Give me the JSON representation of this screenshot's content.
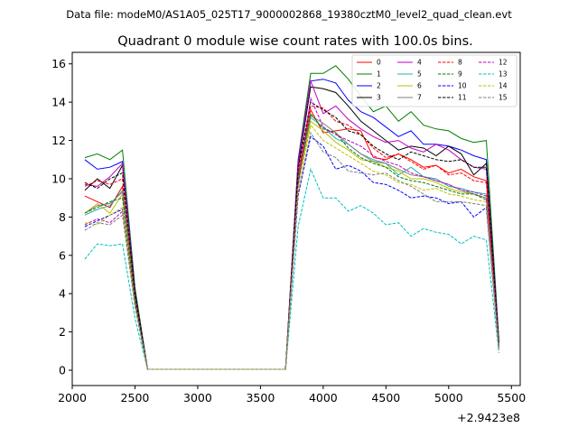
{
  "header": {
    "file_label": "Data file: modeM0/AS1A05_025T17_9000002868_19380cztM0_level2_quad_clean.evt"
  },
  "chart_data": {
    "type": "line",
    "title": "Quadrant 0 module wise count rates with 100.0s bins.",
    "xlabel": "",
    "ylabel": "",
    "x_offset_label": "+2.9423e8",
    "xlim": [
      2000,
      5570
    ],
    "ylim": [
      -0.8,
      16.6
    ],
    "xticks": [
      2000,
      2500,
      3000,
      3500,
      4000,
      4500,
      5000,
      5500
    ],
    "yticks": [
      0,
      2,
      4,
      6,
      8,
      10,
      12,
      14,
      16
    ],
    "grid": false,
    "legend": {
      "placement": "top-right",
      "columns": 4
    },
    "x": [
      2100,
      2200,
      2300,
      2400,
      2500,
      2600,
      2700,
      2800,
      2900,
      3000,
      3100,
      3200,
      3300,
      3400,
      3500,
      3600,
      3700,
      3800,
      3900,
      4000,
      4100,
      4200,
      4300,
      4400,
      4500,
      4600,
      4700,
      4800,
      4900,
      5000,
      5100,
      5200,
      5300,
      5400
    ],
    "series": [
      {
        "name": "0",
        "color": "#ff0000",
        "dash": "solid",
        "values": [
          9.1,
          8.8,
          8.5,
          9.6,
          3.8,
          0.05,
          0.05,
          0.05,
          0.05,
          0.05,
          0.05,
          0.05,
          0.05,
          0.05,
          0.05,
          0.05,
          0.05,
          10.2,
          13.6,
          12.4,
          12.5,
          12.6,
          12.5,
          11.1,
          11.0,
          11.3,
          11.0,
          10.6,
          10.7,
          10.3,
          10.5,
          10.1,
          9.9,
          1.3
        ]
      },
      {
        "name": "1",
        "color": "#008000",
        "dash": "solid",
        "values": [
          11.1,
          11.3,
          11.0,
          11.5,
          4.3,
          0.05,
          0.05,
          0.05,
          0.05,
          0.05,
          0.05,
          0.05,
          0.05,
          0.05,
          0.05,
          0.05,
          0.05,
          11.0,
          15.5,
          15.5,
          15.9,
          15.2,
          14.3,
          13.5,
          13.8,
          13.0,
          13.5,
          12.8,
          12.6,
          12.5,
          12.1,
          11.9,
          12.0,
          1.6
        ]
      },
      {
        "name": "2",
        "color": "#0000ff",
        "dash": "solid",
        "values": [
          11.0,
          10.5,
          10.6,
          10.9,
          4.1,
          0.05,
          0.05,
          0.05,
          0.05,
          0.05,
          0.05,
          0.05,
          0.05,
          0.05,
          0.05,
          0.05,
          0.05,
          10.9,
          15.1,
          15.2,
          15.0,
          14.1,
          13.5,
          13.2,
          12.7,
          12.2,
          12.5,
          11.8,
          11.8,
          11.7,
          11.5,
          11.2,
          11.0,
          1.5
        ]
      },
      {
        "name": "3",
        "color": "#000000",
        "dash": "solid",
        "values": [
          9.4,
          10.0,
          9.5,
          10.7,
          4.0,
          0.05,
          0.05,
          0.05,
          0.05,
          0.05,
          0.05,
          0.05,
          0.05,
          0.05,
          0.05,
          0.05,
          0.05,
          10.6,
          14.8,
          14.7,
          14.5,
          13.8,
          13.0,
          12.5,
          12.0,
          11.5,
          11.7,
          11.6,
          11.2,
          11.7,
          11.3,
          10.2,
          10.8,
          1.4
        ]
      },
      {
        "name": "4",
        "color": "#bf00bf",
        "dash": "solid",
        "values": [
          9.7,
          9.6,
          10.1,
          10.8,
          4.0,
          0.05,
          0.05,
          0.05,
          0.05,
          0.05,
          0.05,
          0.05,
          0.05,
          0.05,
          0.05,
          0.05,
          0.05,
          10.8,
          15.1,
          13.4,
          13.8,
          13.1,
          12.6,
          12.2,
          11.9,
          12.0,
          11.6,
          11.4,
          11.8,
          11.5,
          11.0,
          10.6,
          10.5,
          1.5
        ]
      },
      {
        "name": "5",
        "color": "#20b2aa",
        "dash": "solid",
        "values": [
          8.1,
          8.4,
          8.6,
          9.4,
          3.7,
          0.05,
          0.05,
          0.05,
          0.05,
          0.05,
          0.05,
          0.05,
          0.05,
          0.05,
          0.05,
          0.05,
          0.05,
          10.0,
          13.2,
          12.7,
          12.1,
          11.8,
          11.3,
          11.0,
          10.8,
          10.2,
          10.6,
          10.1,
          10.0,
          9.6,
          9.5,
          9.3,
          9.2,
          1.2
        ]
      },
      {
        "name": "6",
        "color": "#bfbf00",
        "dash": "solid",
        "values": [
          8.2,
          8.7,
          8.2,
          9.2,
          3.6,
          0.05,
          0.05,
          0.05,
          0.05,
          0.05,
          0.05,
          0.05,
          0.05,
          0.05,
          0.05,
          0.05,
          0.05,
          9.8,
          13.0,
          12.5,
          11.9,
          11.5,
          11.0,
          10.9,
          10.6,
          10.4,
          10.0,
          10.0,
          9.8,
          9.5,
          9.3,
          9.2,
          9.0,
          1.2
        ]
      },
      {
        "name": "7",
        "color": "#7f7f7f",
        "dash": "solid",
        "values": [
          8.2,
          8.6,
          8.7,
          9.3,
          3.6,
          0.05,
          0.05,
          0.05,
          0.05,
          0.05,
          0.05,
          0.05,
          0.05,
          0.05,
          0.05,
          0.05,
          0.05,
          9.9,
          13.3,
          12.9,
          12.4,
          11.8,
          11.3,
          10.9,
          10.8,
          10.5,
          10.2,
          10.1,
          9.9,
          9.7,
          9.4,
          9.2,
          9.0,
          1.2
        ]
      },
      {
        "name": "8",
        "color": "#ff0000",
        "dash": "dashed",
        "values": [
          9.6,
          9.9,
          9.7,
          10.0,
          3.9,
          0.05,
          0.05,
          0.05,
          0.05,
          0.05,
          0.05,
          0.05,
          0.05,
          0.05,
          0.05,
          0.05,
          0.05,
          10.5,
          13.8,
          13.7,
          13.0,
          12.8,
          12.3,
          11.6,
          11.1,
          11.3,
          10.9,
          10.5,
          10.7,
          10.2,
          10.3,
          9.9,
          9.8,
          1.3
        ]
      },
      {
        "name": "9",
        "color": "#008000",
        "dash": "dashed",
        "values": [
          8.2,
          8.5,
          8.8,
          9.0,
          3.6,
          0.05,
          0.05,
          0.05,
          0.05,
          0.05,
          0.05,
          0.05,
          0.05,
          0.05,
          0.05,
          0.05,
          0.05,
          9.9,
          13.4,
          12.6,
          12.4,
          11.6,
          11.1,
          10.8,
          10.6,
          10.1,
          9.9,
          9.8,
          9.6,
          9.4,
          9.2,
          9.2,
          8.9,
          1.1
        ]
      },
      {
        "name": "10",
        "color": "#0000ff",
        "dash": "dashed",
        "values": [
          7.5,
          7.8,
          8.1,
          8.4,
          3.4,
          0.05,
          0.05,
          0.05,
          0.05,
          0.05,
          0.05,
          0.05,
          0.05,
          0.05,
          0.05,
          0.05,
          0.05,
          9.1,
          12.2,
          11.7,
          10.5,
          10.7,
          10.4,
          9.8,
          9.7,
          9.4,
          9.0,
          9.1,
          9.0,
          8.7,
          8.8,
          8.0,
          8.5,
          1.1
        ]
      },
      {
        "name": "11",
        "color": "#000000",
        "dash": "dashed",
        "values": [
          9.8,
          9.5,
          10.0,
          10.3,
          4.0,
          0.05,
          0.05,
          0.05,
          0.05,
          0.05,
          0.05,
          0.05,
          0.05,
          0.05,
          0.05,
          0.05,
          0.05,
          10.5,
          14.0,
          13.6,
          13.2,
          12.5,
          12.3,
          11.7,
          11.3,
          11.0,
          11.4,
          11.2,
          11.0,
          10.9,
          11.0,
          10.6,
          10.6,
          1.4
        ]
      },
      {
        "name": "12",
        "color": "#bf00bf",
        "dash": "dashed",
        "values": [
          7.6,
          7.9,
          7.7,
          8.3,
          3.4,
          0.05,
          0.05,
          0.05,
          0.05,
          0.05,
          0.05,
          0.05,
          0.05,
          0.05,
          0.05,
          0.05,
          0.05,
          9.6,
          14.2,
          12.7,
          12.3,
          12.0,
          11.7,
          11.2,
          10.9,
          10.7,
          10.3,
          10.1,
          9.9,
          9.7,
          9.4,
          9.3,
          9.1,
          1.2
        ]
      },
      {
        "name": "13",
        "color": "#00bfbf",
        "dash": "dashed",
        "values": [
          5.8,
          6.6,
          6.5,
          6.6,
          2.7,
          0.05,
          0.05,
          0.05,
          0.05,
          0.05,
          0.05,
          0.05,
          0.05,
          0.05,
          0.05,
          0.05,
          0.05,
          7.5,
          10.5,
          9.0,
          9.0,
          8.3,
          8.6,
          8.2,
          7.6,
          7.7,
          7.0,
          7.4,
          7.2,
          7.1,
          6.6,
          7.0,
          6.8,
          0.9
        ]
      },
      {
        "name": "14",
        "color": "#bfbf00",
        "dash": "dashed",
        "values": [
          7.7,
          7.6,
          8.1,
          8.5,
          3.4,
          0.05,
          0.05,
          0.05,
          0.05,
          0.05,
          0.05,
          0.05,
          0.05,
          0.05,
          0.05,
          0.05,
          0.05,
          9.5,
          12.8,
          12.0,
          11.6,
          11.2,
          10.8,
          10.4,
          10.2,
          9.8,
          9.7,
          9.4,
          9.5,
          9.2,
          9.1,
          8.9,
          8.8,
          1.1
        ]
      },
      {
        "name": "15",
        "color": "#7f7f7f",
        "dash": "dashed",
        "values": [
          7.3,
          7.7,
          7.6,
          8.1,
          3.3,
          0.05,
          0.05,
          0.05,
          0.05,
          0.05,
          0.05,
          0.05,
          0.05,
          0.05,
          0.05,
          0.05,
          0.05,
          9.2,
          12.4,
          11.4,
          11.1,
          10.4,
          10.3,
          10.2,
          10.3,
          9.9,
          9.6,
          9.2,
          8.8,
          8.8,
          8.8,
          8.7,
          8.6,
          1.1
        ]
      }
    ]
  }
}
